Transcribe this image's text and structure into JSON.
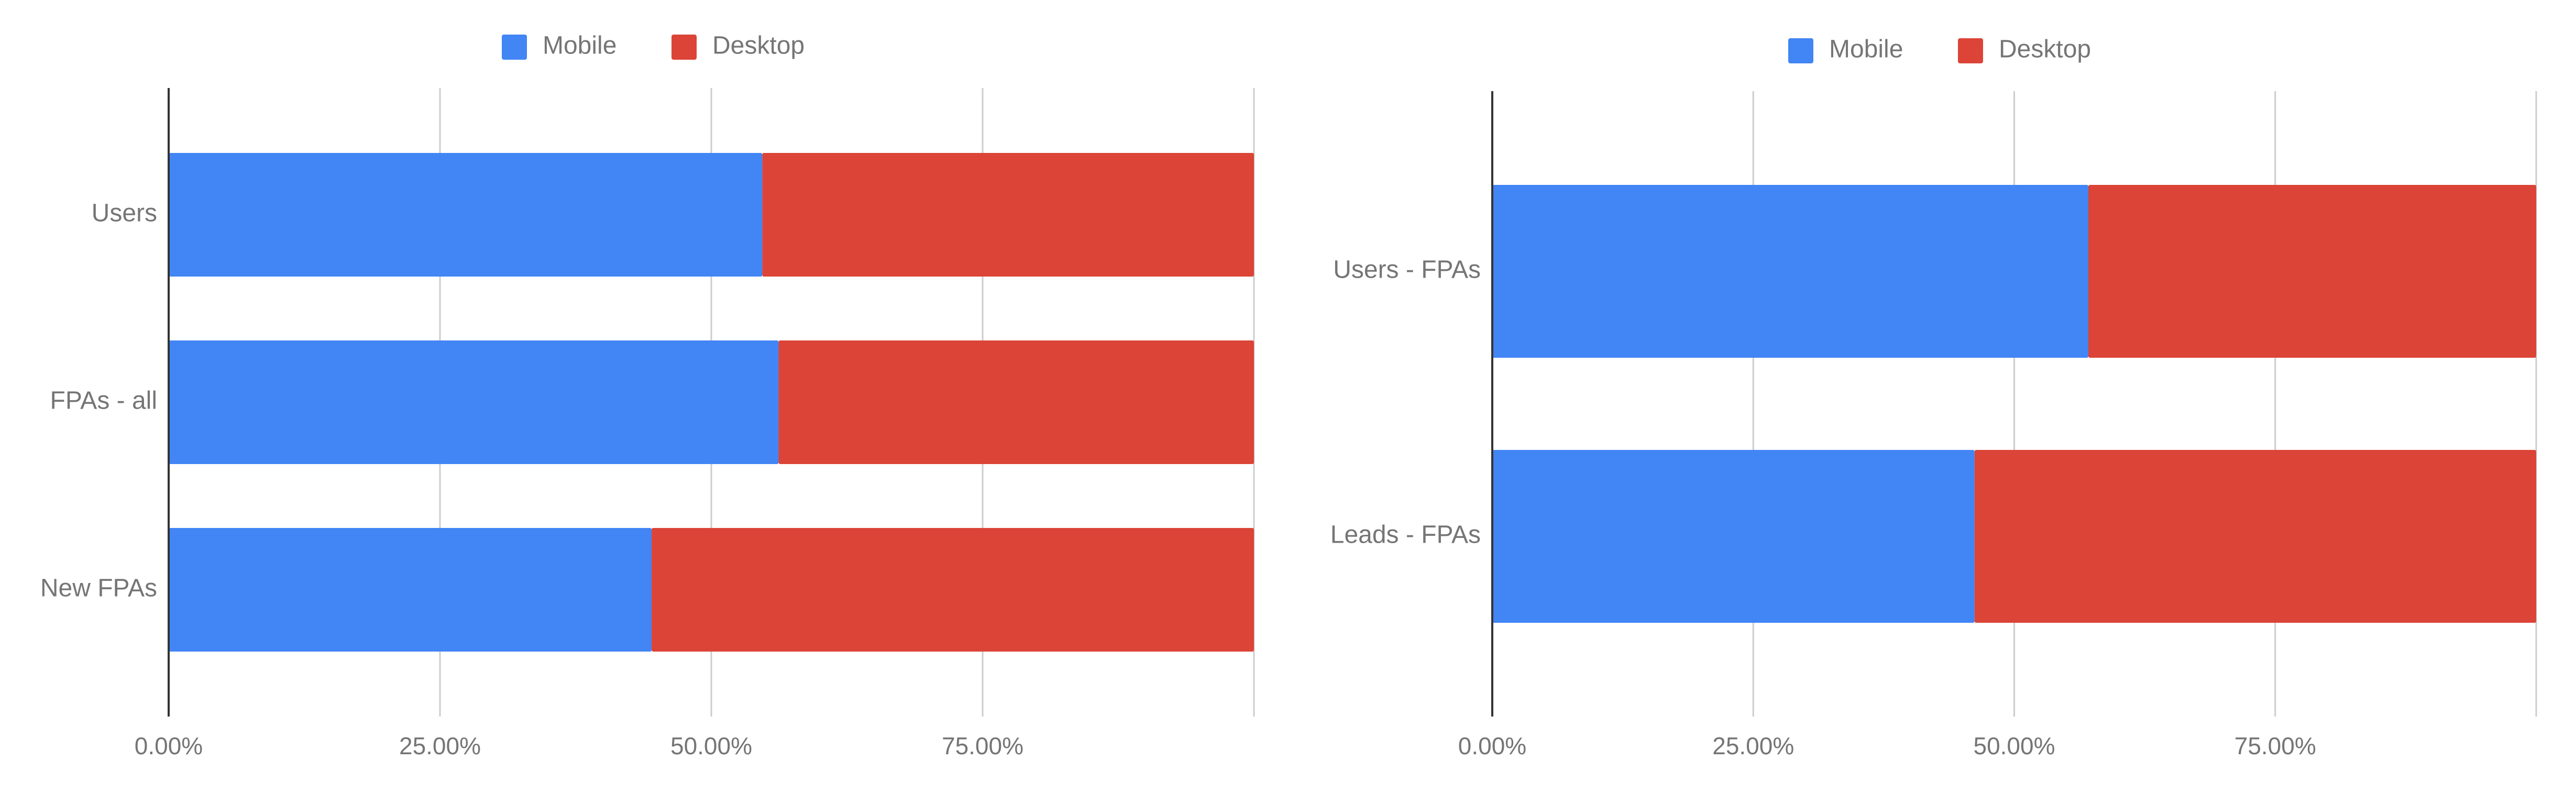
{
  "colors": {
    "mobile": "#4285F4",
    "desktop": "#DB4437"
  },
  "chart_data": [
    {
      "type": "bar",
      "stacked": "percent",
      "orientation": "horizontal",
      "categories": [
        "Users",
        "FPAs - all",
        "New FPAs"
      ],
      "series": [
        {
          "name": "Mobile",
          "values": [
            54.7,
            56.2,
            44.5
          ]
        },
        {
          "name": "Desktop",
          "values": [
            45.3,
            43.8,
            55.5
          ]
        }
      ],
      "xlim": [
        0,
        100
      ],
      "x_ticks": [
        "0.00%",
        "25.00%",
        "50.00%",
        "75.00%"
      ],
      "x_tick_values": [
        0,
        25,
        50,
        75
      ],
      "grid": true,
      "legend": "top",
      "title": "",
      "xlabel": "",
      "ylabel": ""
    },
    {
      "type": "bar",
      "stacked": "percent",
      "orientation": "horizontal",
      "categories": [
        "Users - FPAs",
        "Leads - FPAs"
      ],
      "series": [
        {
          "name": "Mobile",
          "values": [
            57.1,
            46.2
          ]
        },
        {
          "name": "Desktop",
          "values": [
            42.9,
            53.8
          ]
        }
      ],
      "xlim": [
        0,
        100
      ],
      "x_ticks": [
        "0.00%",
        "25.00%",
        "50.00%",
        "75.00%"
      ],
      "x_tick_values": [
        0,
        25,
        50,
        75
      ],
      "grid": true,
      "legend": "top",
      "title": "",
      "xlabel": "",
      "ylabel": ""
    }
  ]
}
